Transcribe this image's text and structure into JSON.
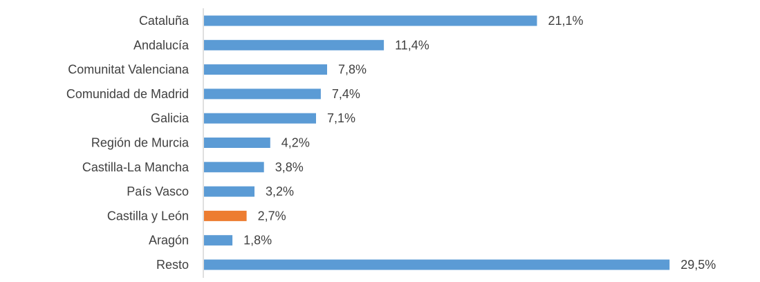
{
  "chart_data": {
    "type": "bar",
    "orientation": "horizontal",
    "categories": [
      "Cataluña",
      "Andalucía",
      "Comunitat Valenciana",
      "Comunidad de Madrid",
      "Galicia",
      "Región de Murcia",
      "Castilla-La Mancha",
      "País Vasco",
      "Castilla y León",
      "Aragón",
      "Resto"
    ],
    "values": [
      21.1,
      11.4,
      7.8,
      7.4,
      7.1,
      4.2,
      3.8,
      3.2,
      2.7,
      1.8,
      29.5
    ],
    "value_labels": [
      "21,1%",
      "11,4%",
      "7,8%",
      "7,4%",
      "7,1%",
      "4,2%",
      "3,8%",
      "3,2%",
      "2,7%",
      "1,8%",
      "29,5%"
    ],
    "unit": "%",
    "xlim": [
      0,
      30
    ],
    "grid": false,
    "legend": "none",
    "colors": {
      "default": "#5b9bd5",
      "highlight": "#ed7d31",
      "axis": "#bfbfbf"
    },
    "highlight_index": 8
  }
}
